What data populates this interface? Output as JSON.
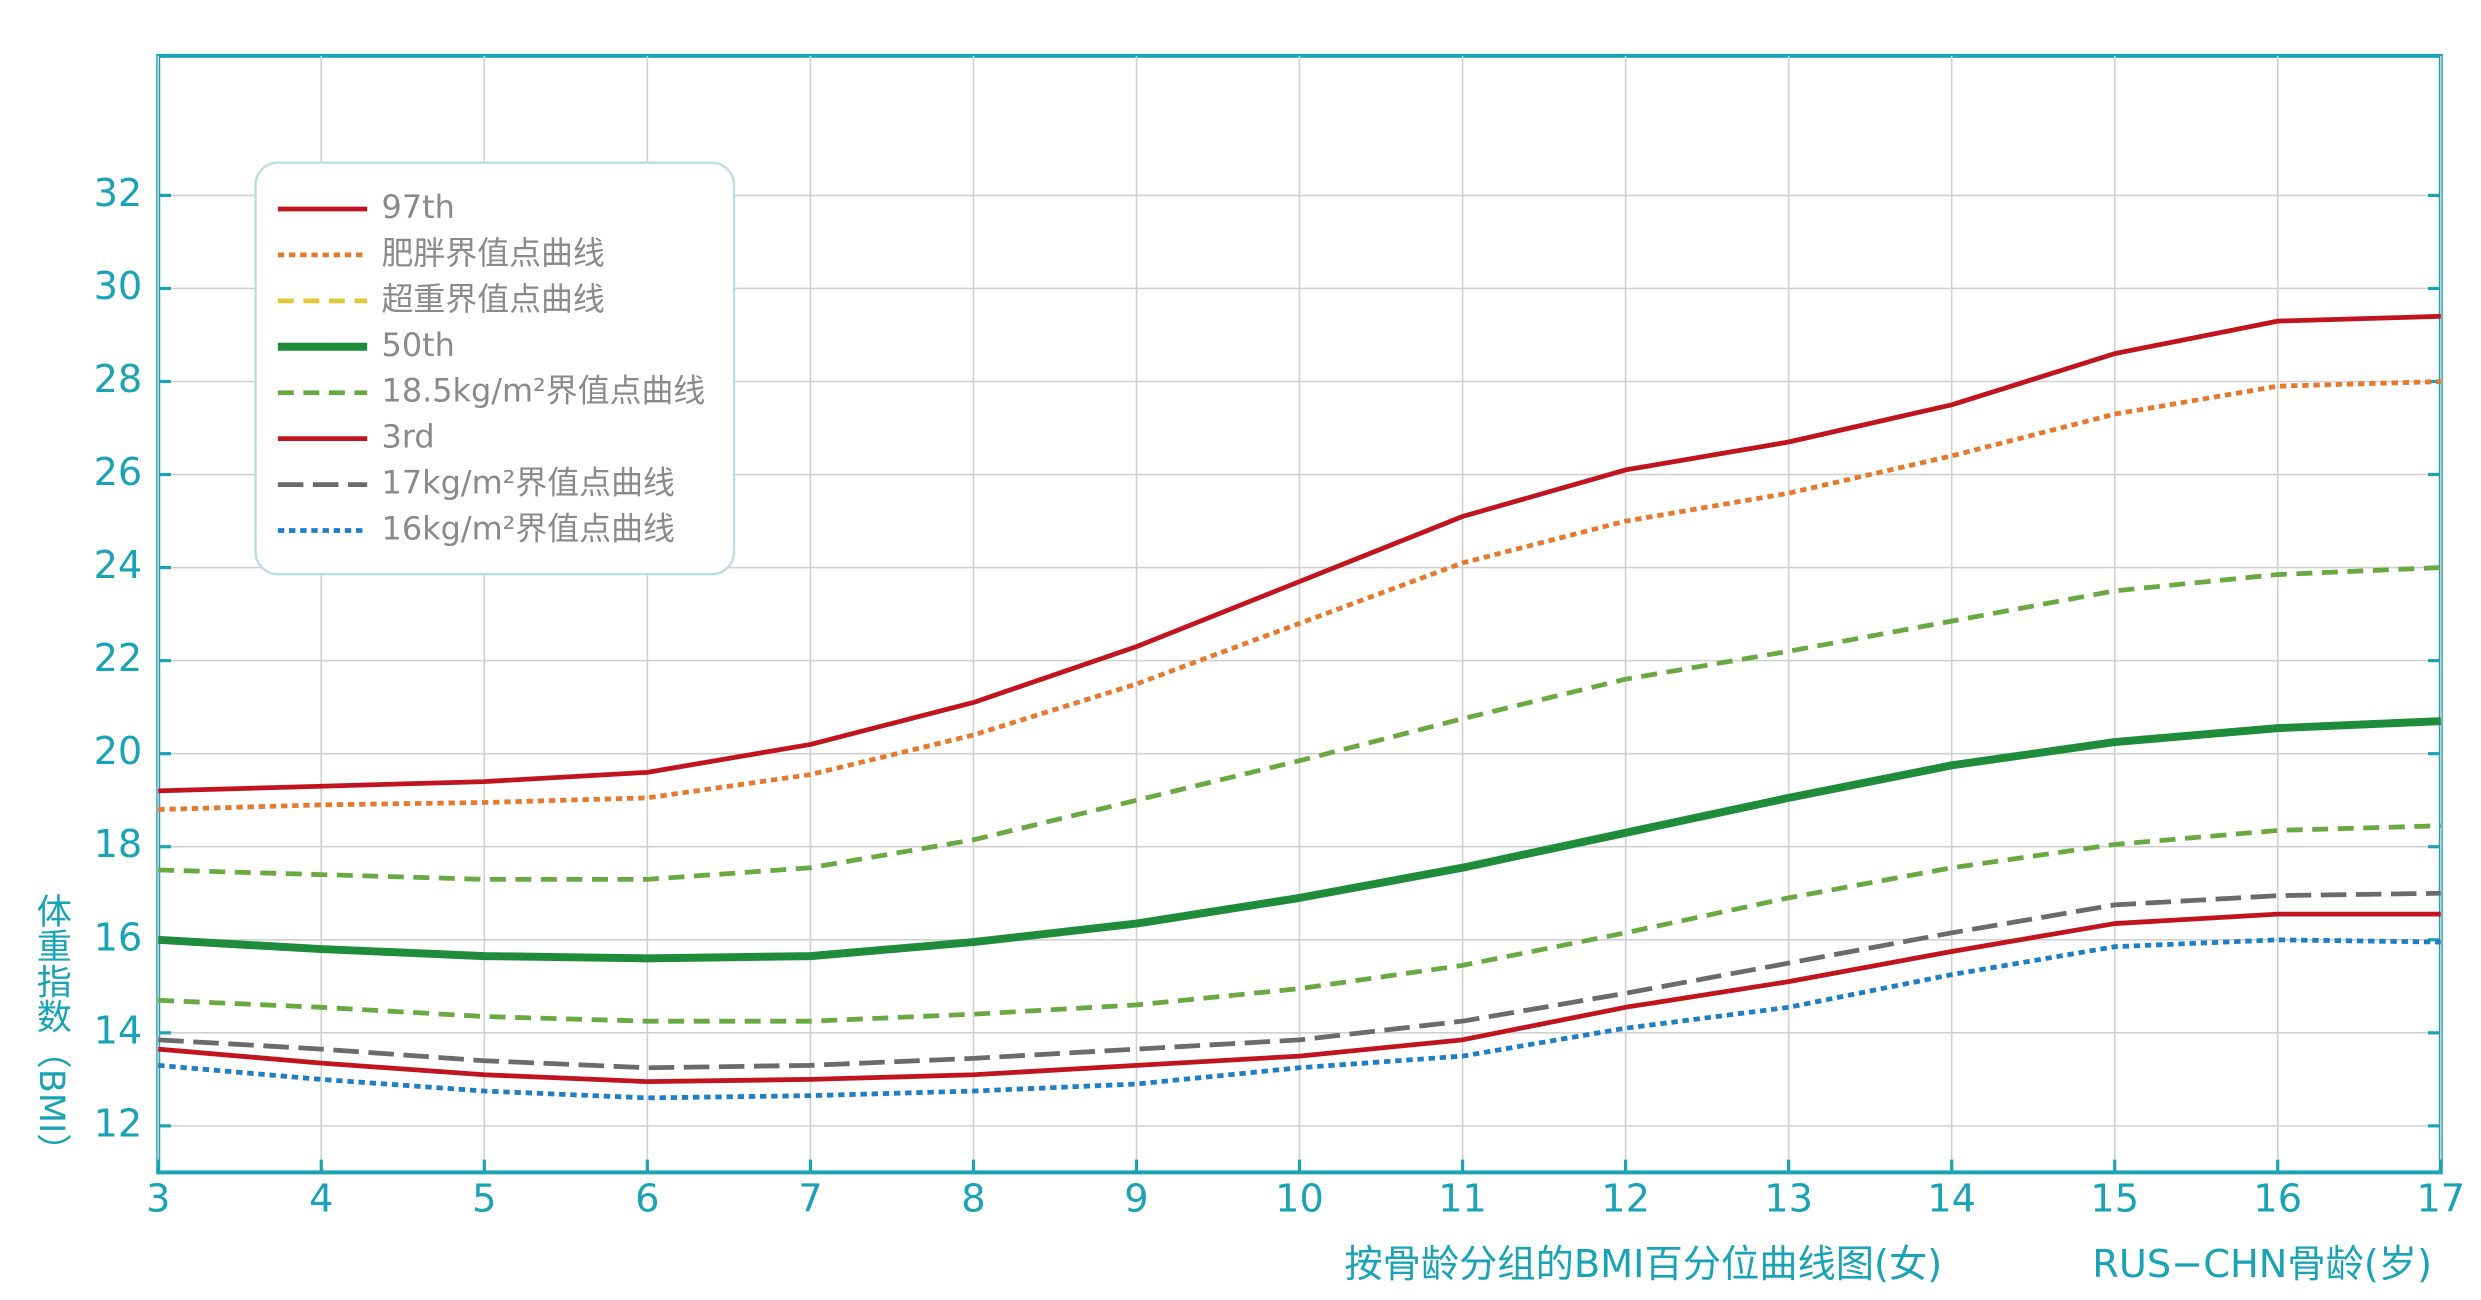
{
  "chart_data": {
    "type": "line",
    "title": "按骨龄分组的BMI百分位曲线图(女)",
    "x_label": "RUS−CHN骨龄(岁)",
    "y_label": "体重指数（BMI）",
    "x": [
      3,
      4,
      5,
      6,
      7,
      8,
      9,
      10,
      11,
      12,
      13,
      14,
      15,
      16,
      17
    ],
    "xlim": [
      3,
      17
    ],
    "xticks": [
      3,
      4,
      5,
      6,
      7,
      8,
      9,
      10,
      11,
      12,
      13,
      14,
      15,
      16,
      17
    ],
    "ylim": [
      11,
      35
    ],
    "yticks": [
      12,
      14,
      16,
      18,
      20,
      22,
      24,
      26,
      28,
      30,
      32
    ],
    "grid": true,
    "legend": "upper left",
    "series": [
      {
        "name": "97th",
        "color": "#c0141f",
        "style": "solid",
        "values": [
          19.2,
          19.3,
          19.4,
          19.6,
          20.2,
          21.1,
          22.3,
          23.7,
          25.1,
          26.1,
          26.7,
          27.5,
          28.6,
          29.3,
          29.4
        ]
      },
      {
        "name": "肥胖界值点曲线",
        "color": "#e57a2e",
        "style": "dotted",
        "values": [
          18.8,
          18.9,
          18.95,
          19.05,
          19.55,
          20.4,
          21.5,
          22.8,
          24.1,
          25.0,
          25.6,
          26.4,
          27.3,
          27.9,
          28.0
        ]
      },
      {
        "name": "超重界值点曲线",
        "color": "#e3c83a",
        "style": "dashed",
        "values": [
          null,
          null,
          null,
          null,
          null,
          null,
          null,
          null,
          null,
          null,
          null,
          null,
          null,
          null,
          null
        ]
      },
      {
        "name": "50th",
        "color": "#1f8c3b",
        "style": "bold",
        "values": [
          16.0,
          15.8,
          15.65,
          15.6,
          15.65,
          15.95,
          16.35,
          16.9,
          17.55,
          18.3,
          19.05,
          19.75,
          20.25,
          20.55,
          20.7
        ]
      },
      {
        "name": "18.5kg/m²界值点曲线",
        "color": "#6aa842",
        "style": "dashed",
        "values": [
          14.7,
          14.55,
          14.35,
          14.25,
          14.25,
          14.4,
          14.6,
          14.95,
          15.45,
          16.15,
          16.9,
          17.55,
          18.05,
          18.35,
          18.45
        ]
      },
      {
        "name": "3rd",
        "color": "#c0141f",
        "style": "solid",
        "values": [
          13.65,
          13.35,
          13.1,
          12.95,
          13.0,
          13.1,
          13.3,
          13.5,
          13.85,
          14.55,
          15.1,
          15.75,
          16.35,
          16.55,
          16.55
        ]
      },
      {
        "name": "17kg/m²界值点曲线",
        "color": "#6b6b6b",
        "style": "long-dash",
        "values": [
          13.85,
          13.65,
          13.4,
          13.25,
          13.3,
          13.45,
          13.65,
          13.85,
          14.25,
          14.85,
          15.5,
          16.15,
          16.75,
          16.95,
          17.0
        ]
      },
      {
        "name": "16kg/m²界值点曲线",
        "color": "#1f7fc4",
        "style": "dotted",
        "values": [
          13.3,
          13.0,
          12.75,
          12.6,
          12.65,
          12.75,
          12.9,
          13.25,
          13.5,
          14.1,
          14.55,
          15.25,
          15.85,
          16.0,
          15.95
        ]
      },
      {
        "color": "#6aa842",
        "style": "dashed",
        "values": [
          17.5,
          17.4,
          17.3,
          17.3,
          17.55,
          18.15,
          19.0,
          19.85,
          20.75,
          21.6,
          22.2,
          22.85,
          23.5,
          23.85,
          24.0
        ]
      }
    ]
  }
}
